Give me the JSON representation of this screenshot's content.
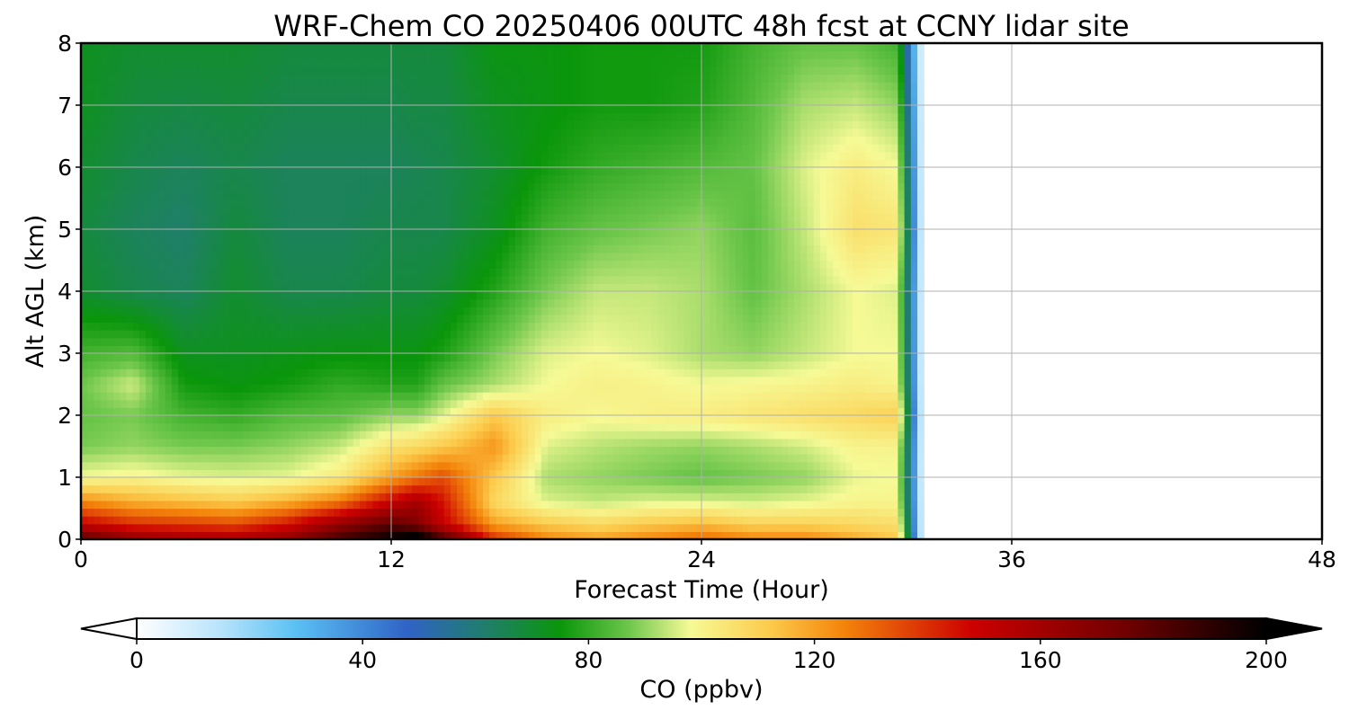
{
  "chart_data": {
    "type": "heatmap",
    "subtype": "filled-contour",
    "title": "WRF-Chem CO  20250406 00UTC 48h fcst at CCNY lidar site",
    "xlabel": "Forecast Time (Hour)",
    "ylabel": "Alt AGL (km)",
    "xlim": [
      0,
      48
    ],
    "ylim": [
      0,
      8
    ],
    "xticks": [
      "0",
      "12",
      "24",
      "36",
      "48"
    ],
    "yticks": [
      "0",
      "1",
      "2",
      "3",
      "4",
      "5",
      "6",
      "7",
      "8"
    ],
    "grid": true,
    "data_end_hour": 32.5,
    "colorbar": {
      "label": "CO  (ppbv)",
      "min": 0,
      "max": 200,
      "extend": "both",
      "ticks": [
        "0",
        "40",
        "80",
        "120",
        "160",
        "200"
      ],
      "color_stops": [
        {
          "value": 0,
          "color": "#ffffff"
        },
        {
          "value": 15,
          "color": "#b7e3fb"
        },
        {
          "value": 28,
          "color": "#5bc1f4"
        },
        {
          "value": 48,
          "color": "#2f63c5"
        },
        {
          "value": 62,
          "color": "#1f7f69"
        },
        {
          "value": 75,
          "color": "#0a960a"
        },
        {
          "value": 87,
          "color": "#6cc64a"
        },
        {
          "value": 98,
          "color": "#f6fa96"
        },
        {
          "value": 112,
          "color": "#fccb4c"
        },
        {
          "value": 125,
          "color": "#f4850b"
        },
        {
          "value": 148,
          "color": "#cc0000"
        },
        {
          "value": 175,
          "color": "#700000"
        },
        {
          "value": 200,
          "color": "#000000"
        }
      ]
    },
    "altitudes_km": [
      0,
      0.25,
      0.6,
      1.0,
      1.5,
      2.0,
      2.5,
      3.0,
      4.0,
      5.0,
      6.0,
      7.0,
      8.0
    ],
    "series": [
      {
        "hour": 0,
        "values": [
          180,
          150,
          125,
          98,
          88,
          86,
          87,
          82,
          70,
          68,
          70,
          72,
          72
        ]
      },
      {
        "hour": 2,
        "values": [
          165,
          140,
          118,
          100,
          90,
          88,
          95,
          84,
          66,
          64,
          66,
          68,
          70
        ]
      },
      {
        "hour": 4,
        "values": [
          160,
          138,
          115,
          97,
          88,
          82,
          76,
          72,
          64,
          62,
          64,
          67,
          70
        ]
      },
      {
        "hour": 6,
        "values": [
          158,
          135,
          112,
          96,
          88,
          80,
          74,
          72,
          70,
          68,
          66,
          68,
          70
        ]
      },
      {
        "hour": 8,
        "values": [
          165,
          145,
          118,
          97,
          90,
          84,
          76,
          73,
          66,
          64,
          64,
          66,
          68
        ]
      },
      {
        "hour": 10,
        "values": [
          185,
          165,
          128,
          103,
          94,
          85,
          80,
          74,
          66,
          64,
          64,
          66,
          68
        ]
      },
      {
        "hour": 12,
        "values": [
          200,
          180,
          150,
          120,
          105,
          90,
          78,
          74,
          68,
          66,
          64,
          66,
          68
        ]
      },
      {
        "hour": 13,
        "values": [
          210,
          170,
          160,
          128,
          108,
          90,
          78,
          74,
          68,
          66,
          65,
          67,
          68
        ]
      },
      {
        "hour": 14,
        "values": [
          185,
          150,
          145,
          135,
          112,
          96,
          86,
          77,
          70,
          66,
          66,
          67,
          68
        ]
      },
      {
        "hour": 16,
        "values": [
          140,
          120,
          108,
          112,
          122,
          112,
          92,
          88,
          78,
          72,
          70,
          72,
          74
        ]
      },
      {
        "hour": 18,
        "values": [
          125,
          112,
          96,
          92,
          96,
          102,
          98,
          96,
          88,
          82,
          76,
          74,
          74
        ]
      },
      {
        "hour": 20,
        "values": [
          120,
          108,
          94,
          90,
          93,
          99,
          101,
          98,
          94,
          86,
          80,
          76,
          76
        ]
      },
      {
        "hour": 22,
        "values": [
          125,
          112,
          96,
          88,
          91,
          101,
          100,
          96,
          94,
          88,
          82,
          76,
          76
        ]
      },
      {
        "hour": 24,
        "values": [
          130,
          115,
          96,
          86,
          90,
          102,
          98,
          92,
          92,
          90,
          84,
          78,
          76
        ]
      },
      {
        "hour": 26,
        "values": [
          125,
          110,
          95,
          88,
          92,
          104,
          99,
          90,
          86,
          85,
          86,
          84,
          82
        ]
      },
      {
        "hour": 28,
        "values": [
          125,
          110,
          97,
          90,
          95,
          106,
          100,
          94,
          92,
          94,
          96,
          92,
          86
        ]
      },
      {
        "hour": 30,
        "values": [
          118,
          108,
          100,
          97,
          100,
          108,
          102,
          98,
          98,
          106,
          102,
          94,
          86
        ]
      },
      {
        "hour": 31.6,
        "values": [
          112,
          106,
          100,
          98,
          100,
          110,
          100,
          98,
          96,
          104,
          98,
          90,
          82
        ]
      },
      {
        "hour": 32.6,
        "values": [
          0,
          0,
          0,
          0,
          0,
          0,
          0,
          0,
          0,
          0,
          0,
          0,
          0
        ]
      }
    ]
  }
}
